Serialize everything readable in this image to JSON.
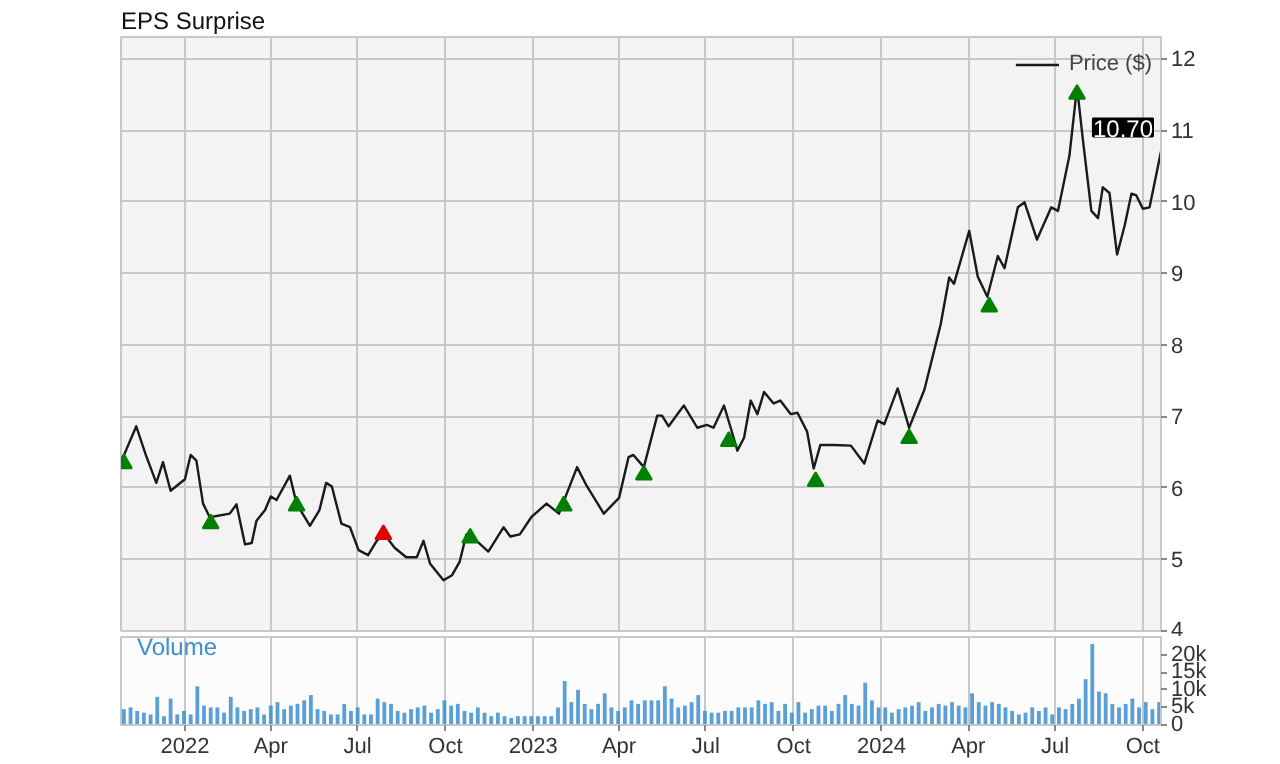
{
  "chart_data": [
    {
      "type": "line",
      "legend_title": "EPS Surprise",
      "legend": "top right",
      "grid": true,
      "tick_labels": "y",
      "xlim": [
        "2021-10-26",
        "2024-10-20"
      ],
      "ylim": [
        4,
        12.3
      ],
      "yticks": [
        4,
        5,
        6,
        7,
        8,
        9,
        10,
        11,
        12
      ],
      "xticks": [
        {
          "value": "2022-01-01",
          "label": null
        },
        {
          "value": "2022-04-01",
          "label": null
        },
        {
          "value": "2022-07-01",
          "label": null
        },
        {
          "value": "2022-10-01",
          "label": null
        },
        {
          "value": "2023-01-01",
          "label": null
        },
        {
          "value": "2023-04-01",
          "label": null
        },
        {
          "value": "2023-07-01",
          "label": null
        },
        {
          "value": "2023-10-01",
          "label": null
        },
        {
          "value": "2024-01-01",
          "label": null
        },
        {
          "value": "2024-04-01",
          "label": null
        },
        {
          "value": "2024-07-01",
          "label": null
        },
        {
          "value": "2024-10-01",
          "label": null
        }
      ],
      "annotations": [
        {
          "text": "10.70",
          "x": "2024-10-20",
          "y": 10.7
        }
      ],
      "series": [
        {
          "name": "Price ($)",
          "type": "line",
          "color": "#1a1a1a",
          "x": [
            "2021-10-26",
            "2021-11-11",
            "2021-11-21",
            "2021-12-02",
            "2021-12-09",
            "2021-12-17",
            "2022-01-01",
            "2022-01-07",
            "2022-01-13",
            "2022-01-20",
            "2022-01-27",
            "2022-02-17",
            "2022-02-24",
            "2022-03-05",
            "2022-03-12",
            "2022-03-17",
            "2022-03-26",
            "2022-04-01",
            "2022-04-07",
            "2022-04-21",
            "2022-04-28",
            "2022-05-12",
            "2022-05-22",
            "2022-05-29",
            "2022-06-04",
            "2022-06-14",
            "2022-06-23",
            "2022-07-02",
            "2022-07-12",
            "2022-07-21",
            "2022-07-29",
            "2022-08-09",
            "2022-08-21",
            "2022-09-01",
            "2022-09-08",
            "2022-09-15",
            "2022-09-29",
            "2022-10-08",
            "2022-10-16",
            "2022-10-23",
            "2022-11-01",
            "2022-11-15",
            "2022-12-01",
            "2022-12-08",
            "2022-12-18",
            "2022-12-30",
            "2023-01-15",
            "2023-01-28",
            "2023-02-16",
            "2023-02-26",
            "2023-03-16",
            "2023-04-01",
            "2023-04-11",
            "2023-04-16",
            "2023-04-27",
            "2023-05-11",
            "2023-05-16",
            "2023-05-23",
            "2023-06-04",
            "2023-06-08",
            "2023-06-22",
            "2023-07-02",
            "2023-07-09",
            "2023-07-20",
            "2023-07-27",
            "2023-08-03",
            "2023-08-10",
            "2023-08-17",
            "2023-08-24",
            "2023-08-31",
            "2023-09-10",
            "2023-09-17",
            "2023-09-28",
            "2023-10-05",
            "2023-10-15",
            "2023-10-22",
            "2023-10-29",
            "2023-11-12",
            "2023-11-30",
            "2023-12-14",
            "2023-12-28",
            "2024-01-04",
            "2024-01-18",
            "2024-01-30",
            "2024-02-15",
            "2024-03-03",
            "2024-03-12",
            "2024-03-17",
            "2024-04-02",
            "2024-04-11",
            "2024-04-21",
            "2024-05-02",
            "2024-05-09",
            "2024-05-23",
            "2024-05-30",
            "2024-06-12",
            "2024-06-27",
            "2024-07-04",
            "2024-07-16",
            "2024-07-24",
            "2024-07-30",
            "2024-08-08",
            "2024-08-15",
            "2024-08-20",
            "2024-08-27",
            "2024-09-04",
            "2024-09-12",
            "2024-09-19",
            "2024-09-24",
            "2024-10-01",
            "2024-10-08",
            "2024-10-20"
          ],
          "values": [
            6.36,
            6.86,
            6.46,
            6.07,
            6.36,
            5.96,
            6.12,
            6.46,
            6.38,
            5.78,
            5.59,
            5.64,
            5.77,
            5.21,
            5.23,
            5.54,
            5.69,
            5.88,
            5.83,
            6.17,
            5.78,
            5.47,
            5.69,
            6.07,
            6.02,
            5.5,
            5.45,
            5.13,
            5.06,
            5.26,
            5.35,
            5.16,
            5.03,
            5.03,
            5.26,
            4.94,
            4.71,
            4.78,
            4.97,
            5.35,
            5.28,
            5.11,
            5.45,
            5.32,
            5.35,
            5.59,
            5.78,
            5.64,
            6.29,
            6.03,
            5.64,
            5.86,
            6.43,
            6.46,
            6.29,
            7.01,
            7.01,
            6.86,
            7.08,
            7.15,
            6.84,
            6.88,
            6.84,
            7.15,
            6.84,
            6.52,
            6.7,
            7.22,
            7.03,
            7.34,
            7.18,
            7.22,
            7.03,
            7.05,
            6.79,
            6.27,
            6.6,
            6.6,
            6.59,
            6.34,
            6.94,
            6.89,
            7.39,
            6.84,
            7.37,
            8.28,
            8.94,
            8.85,
            9.59,
            8.95,
            8.67,
            9.24,
            9.07,
            9.92,
            9.99,
            9.47,
            9.92,
            9.87,
            10.64,
            11.6,
            10.88,
            9.87,
            9.77,
            10.2,
            10.12,
            9.26,
            9.67,
            10.11,
            10.09,
            9.9,
            9.92,
            10.7
          ]
        },
        {
          "type": "scatter",
          "marker": "triangle",
          "color": "#008000",
          "x": [
            "2021-10-29",
            "2022-01-28",
            "2022-04-28",
            "2022-10-27",
            "2023-02-02",
            "2023-04-27",
            "2023-07-25",
            "2023-10-24",
            "2024-01-30",
            "2024-04-23",
            "2024-07-24"
          ],
          "values": [
            6.34,
            5.5,
            5.75,
            5.3,
            5.75,
            6.18,
            6.65,
            6.09,
            6.69,
            8.53,
            11.5
          ]
        },
        {
          "type": "scatter",
          "marker": "triangle",
          "color": "#e00000",
          "x": [
            "2022-07-28"
          ],
          "values": [
            5.35
          ]
        }
      ]
    },
    {
      "type": "bar",
      "title": "Volume",
      "grid": "x",
      "color": "#3d8fd1",
      "xlim": [
        "2021-10-26",
        "2024-10-20"
      ],
      "ylim": [
        0,
        25000
      ],
      "yticks": [
        0,
        {
          "value": 5000,
          "label": "5k"
        },
        {
          "value": 10000,
          "label": "10k"
        },
        {
          "value": 15000,
          "label": "15k"
        },
        {
          "value": 20000,
          "label": "20k"
        }
      ],
      "xticks": [
        {
          "value": "2022-01-01",
          "label": "2022"
        },
        {
          "value": "2022-04-01",
          "label": "Apr"
        },
        {
          "value": "2022-07-01",
          "label": "Jul"
        },
        {
          "value": "2022-10-01",
          "label": "Oct"
        },
        {
          "value": "2023-01-01",
          "label": "2023"
        },
        {
          "value": "2023-04-01",
          "label": "Apr"
        },
        {
          "value": "2023-07-01",
          "label": "Jul"
        },
        {
          "value": "2023-10-01",
          "label": "Oct"
        },
        {
          "value": "2024-01-01",
          "label": "2024"
        },
        {
          "value": "2024-04-01",
          "label": "Apr"
        },
        {
          "value": "2024-07-01",
          "label": "Jul"
        },
        {
          "value": "2024-10-01",
          "label": "Oct"
        }
      ],
      "x": [
        "2021-10-29",
        "2021-11-05",
        "2021-11-12",
        "2021-11-19",
        "2021-11-26",
        "2021-12-03",
        "2021-12-10",
        "2021-12-17",
        "2021-12-24",
        "2021-12-31",
        "2022-01-07",
        "2022-01-14",
        "2022-01-21",
        "2022-01-28",
        "2022-02-04",
        "2022-02-11",
        "2022-02-18",
        "2022-02-25",
        "2022-03-04",
        "2022-03-11",
        "2022-03-18",
        "2022-03-25",
        "2022-04-01",
        "2022-04-08",
        "2022-04-15",
        "2022-04-22",
        "2022-04-29",
        "2022-05-06",
        "2022-05-13",
        "2022-05-20",
        "2022-05-27",
        "2022-06-03",
        "2022-06-10",
        "2022-06-17",
        "2022-06-24",
        "2022-07-01",
        "2022-07-08",
        "2022-07-15",
        "2022-07-22",
        "2022-07-29",
        "2022-08-05",
        "2022-08-12",
        "2022-08-19",
        "2022-08-26",
        "2022-09-02",
        "2022-09-09",
        "2022-09-16",
        "2022-09-23",
        "2022-09-30",
        "2022-10-07",
        "2022-10-14",
        "2022-10-21",
        "2022-10-28",
        "2022-11-04",
        "2022-11-11",
        "2022-11-18",
        "2022-11-25",
        "2022-12-02",
        "2022-12-09",
        "2022-12-16",
        "2022-12-23",
        "2022-12-30",
        "2023-01-06",
        "2023-01-13",
        "2023-01-20",
        "2023-01-27",
        "2023-02-03",
        "2023-02-10",
        "2023-02-17",
        "2023-02-24",
        "2023-03-03",
        "2023-03-10",
        "2023-03-17",
        "2023-03-24",
        "2023-03-31",
        "2023-04-07",
        "2023-04-14",
        "2023-04-21",
        "2023-04-28",
        "2023-05-05",
        "2023-05-12",
        "2023-05-19",
        "2023-05-26",
        "2023-06-02",
        "2023-06-09",
        "2023-06-16",
        "2023-06-23",
        "2023-06-30",
        "2023-07-07",
        "2023-07-14",
        "2023-07-21",
        "2023-07-28",
        "2023-08-04",
        "2023-08-11",
        "2023-08-18",
        "2023-08-25",
        "2023-09-01",
        "2023-09-08",
        "2023-09-15",
        "2023-09-22",
        "2023-09-29",
        "2023-10-06",
        "2023-10-13",
        "2023-10-20",
        "2023-10-27",
        "2023-11-03",
        "2023-11-10",
        "2023-11-17",
        "2023-11-24",
        "2023-12-01",
        "2023-12-08",
        "2023-12-15",
        "2023-12-22",
        "2023-12-29",
        "2024-01-05",
        "2024-01-12",
        "2024-01-19",
        "2024-01-26",
        "2024-02-02",
        "2024-02-09",
        "2024-02-16",
        "2024-02-23",
        "2024-03-01",
        "2024-03-08",
        "2024-03-15",
        "2024-03-22",
        "2024-03-29",
        "2024-04-05",
        "2024-04-12",
        "2024-04-19",
        "2024-04-26",
        "2024-05-03",
        "2024-05-10",
        "2024-05-17",
        "2024-05-24",
        "2024-05-31",
        "2024-06-07",
        "2024-06-14",
        "2024-06-21",
        "2024-06-28",
        "2024-07-05",
        "2024-07-12",
        "2024-07-19",
        "2024-07-26",
        "2024-08-02",
        "2024-08-09",
        "2024-08-16",
        "2024-08-23",
        "2024-08-30",
        "2024-09-06",
        "2024-09-13",
        "2024-09-20",
        "2024-09-27",
        "2024-10-04",
        "2024-10-11",
        "2024-10-18"
      ],
      "values": [
        4500,
        5000,
        4000,
        3500,
        3000,
        8000,
        2500,
        7500,
        3000,
        4000,
        3000,
        11000,
        5500,
        5000,
        5000,
        3500,
        8000,
        5000,
        4000,
        4500,
        5000,
        3000,
        5500,
        6500,
        4500,
        5500,
        6000,
        7000,
        8500,
        4500,
        4000,
        3000,
        3000,
        6000,
        4000,
        5000,
        3000,
        3000,
        7500,
        6500,
        6000,
        4000,
        3500,
        4500,
        5000,
        5500,
        3500,
        4500,
        7000,
        5500,
        6000,
        4000,
        3500,
        5000,
        3500,
        2500,
        3500,
        2500,
        2000,
        2500,
        2500,
        2500,
        2500,
        2500,
        2500,
        5000,
        12500,
        6500,
        10000,
        6000,
        4500,
        6000,
        9000,
        5000,
        4000,
        5000,
        7000,
        6000,
        7000,
        7000,
        7000,
        11000,
        7500,
        5000,
        5500,
        6500,
        8500,
        4000,
        3500,
        3500,
        4000,
        4000,
        5000,
        5000,
        5000,
        7000,
        6000,
        6500,
        4000,
        6000,
        3500,
        6500,
        3500,
        4500,
        5500,
        5500,
        4000,
        6000,
        8500,
        6000,
        5500,
        12000,
        7000,
        5000,
        5000,
        3500,
        4500,
        5000,
        5500,
        6500,
        4000,
        5000,
        6000,
        5500,
        6500,
        5500,
        5000,
        9000,
        6500,
        5500,
        6500,
        6000,
        5000,
        4000,
        3000,
        3500,
        5000,
        4000,
        5000,
        3000,
        5000,
        4500,
        6000,
        7500,
        13000,
        23000,
        9500,
        9000,
        6000,
        5000,
        6000,
        7500,
        5000,
        6500,
        4500,
        6500
      ]
    }
  ]
}
